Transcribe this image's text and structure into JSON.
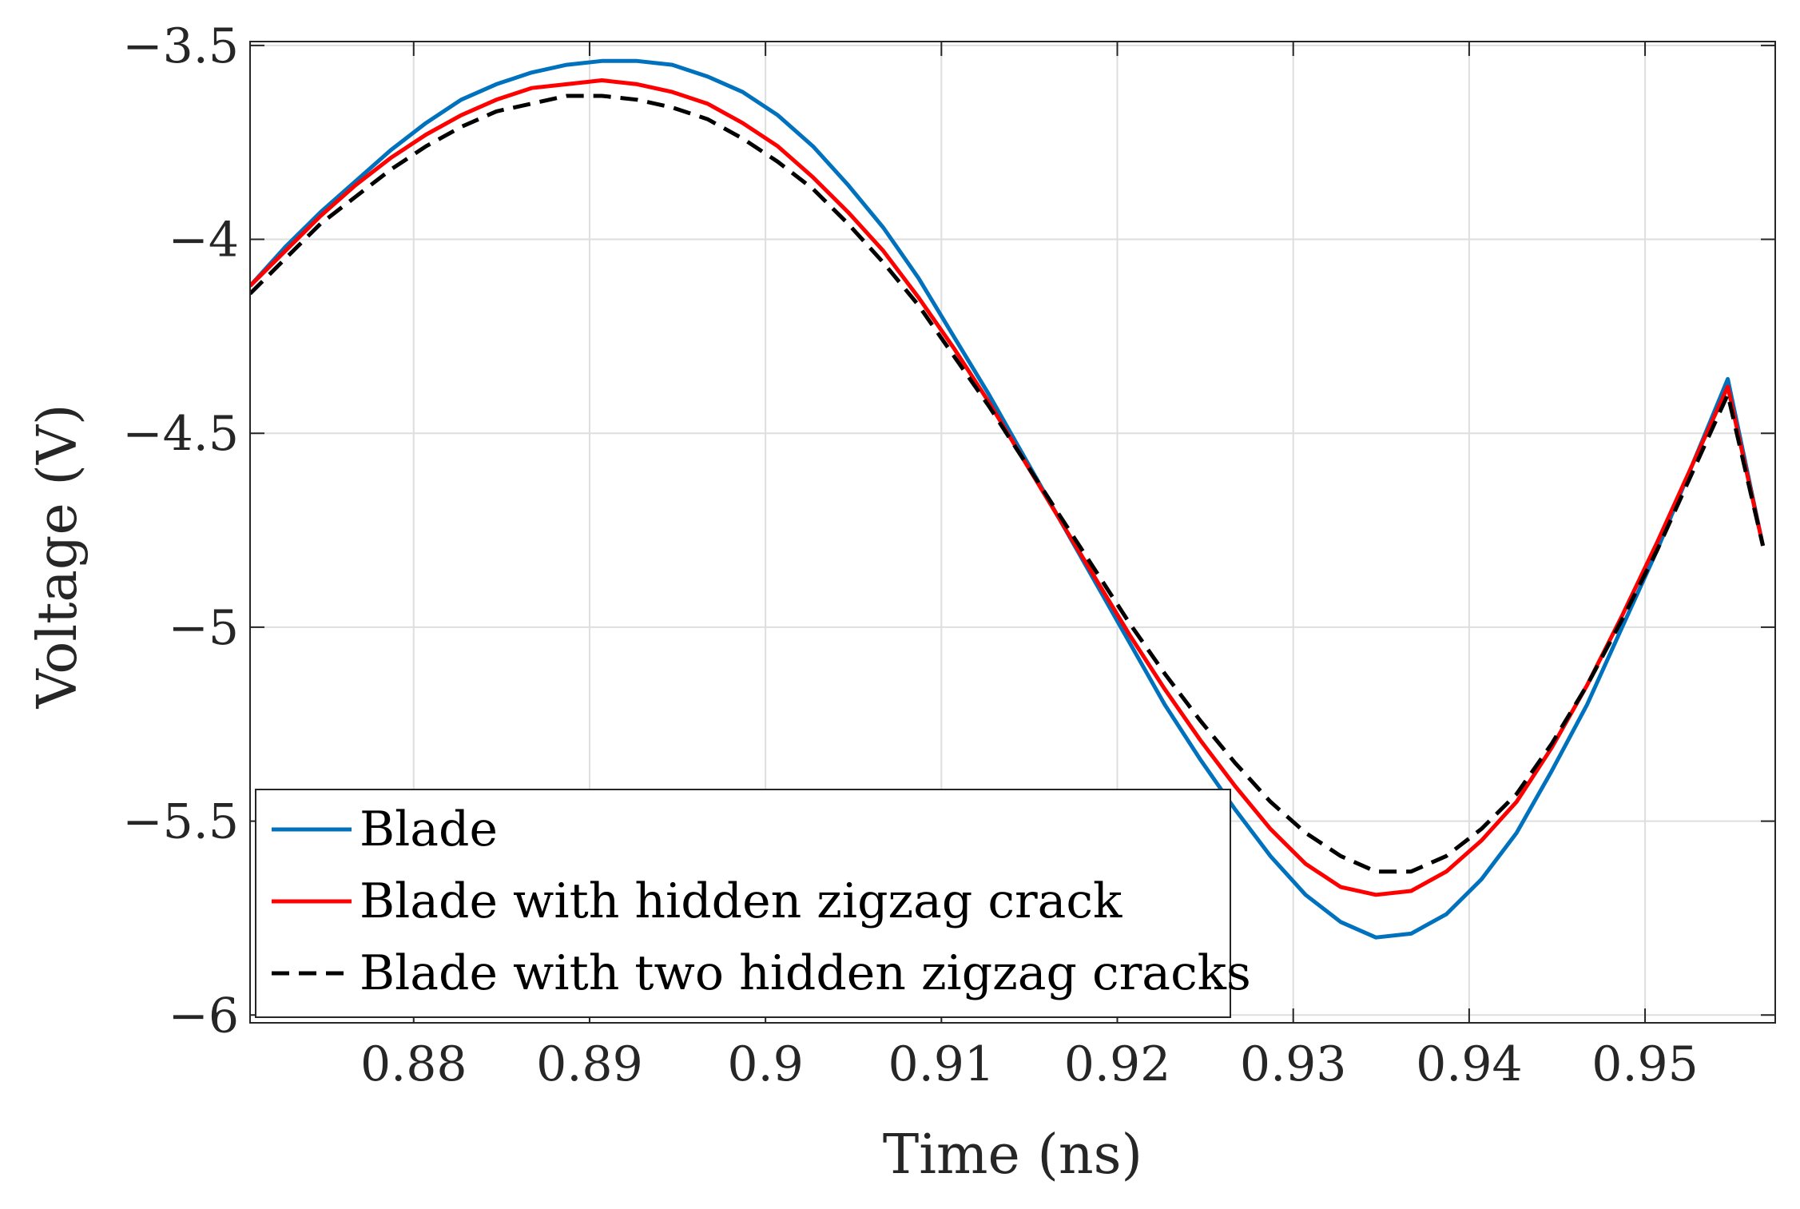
{
  "chart_data": {
    "type": "line",
    "title": "",
    "xlabel": "Time (ns)",
    "ylabel": "Voltage (V)",
    "xlim": [
      0.8707,
      0.9574
    ],
    "ylim": [
      -6.02,
      -3.49
    ],
    "grid": true,
    "legend_position": "bottom-left",
    "xticks": [
      0.88,
      0.89,
      0.9,
      0.91,
      0.92,
      0.93,
      0.94,
      0.95
    ],
    "xtick_labels": [
      "0.88",
      "0.89",
      "0.9",
      "0.91",
      "0.92",
      "0.93",
      "0.94",
      "0.95"
    ],
    "yticks": [
      -3.5,
      -4,
      -4.5,
      -5,
      -5.5,
      -6
    ],
    "ytick_labels": [
      "−3.5",
      "−4",
      "−4.5",
      "−5",
      "−5.5",
      "−6"
    ],
    "x": [
      0.8707,
      0.8727,
      0.8747,
      0.8767,
      0.8787,
      0.8807,
      0.8827,
      0.8847,
      0.8867,
      0.8887,
      0.8907,
      0.8927,
      0.8947,
      0.8967,
      0.8987,
      0.9007,
      0.9027,
      0.9047,
      0.9067,
      0.9087,
      0.9107,
      0.9127,
      0.9147,
      0.9167,
      0.9187,
      0.9207,
      0.9227,
      0.9247,
      0.9267,
      0.9287,
      0.9307,
      0.9327,
      0.9347,
      0.9367,
      0.9387,
      0.9407,
      0.9427,
      0.9447,
      0.9467,
      0.9487,
      0.9507,
      0.9527,
      0.9547,
      0.9567
    ],
    "series": [
      {
        "name": "Blade",
        "color": "#0072BD",
        "dash": "solid",
        "values": [
          -4.12,
          -4.02,
          -3.93,
          -3.85,
          -3.77,
          -3.7,
          -3.64,
          -3.6,
          -3.57,
          -3.55,
          -3.54,
          -3.54,
          -3.55,
          -3.58,
          -3.62,
          -3.68,
          -3.76,
          -3.86,
          -3.97,
          -4.1,
          -4.25,
          -4.4,
          -4.56,
          -4.72,
          -4.88,
          -5.04,
          -5.2,
          -5.34,
          -5.47,
          -5.59,
          -5.69,
          -5.76,
          -5.8,
          -5.79,
          -5.74,
          -5.65,
          -5.53,
          -5.37,
          -5.2,
          -5.0,
          -4.8,
          -4.58,
          -4.36,
          -4.79
        ]
      },
      {
        "name": "Blade with hidden zigzag crack",
        "color": "#FF0000",
        "dash": "solid",
        "values": [
          -4.12,
          -4.03,
          -3.94,
          -3.86,
          -3.79,
          -3.73,
          -3.68,
          -3.64,
          -3.61,
          -3.6,
          -3.59,
          -3.6,
          -3.62,
          -3.65,
          -3.7,
          -3.76,
          -3.84,
          -3.93,
          -4.03,
          -4.15,
          -4.28,
          -4.42,
          -4.57,
          -4.72,
          -4.87,
          -5.02,
          -5.16,
          -5.29,
          -5.41,
          -5.52,
          -5.61,
          -5.67,
          -5.69,
          -5.68,
          -5.63,
          -5.55,
          -5.45,
          -5.31,
          -5.15,
          -4.97,
          -4.78,
          -4.58,
          -4.38,
          -4.79
        ]
      },
      {
        "name": "Blade with two hidden zigzag cracks",
        "color": "#000000",
        "dash": "dashed",
        "values": [
          -4.14,
          -4.05,
          -3.96,
          -3.89,
          -3.82,
          -3.76,
          -3.71,
          -3.67,
          -3.65,
          -3.63,
          -3.63,
          -3.64,
          -3.66,
          -3.69,
          -3.74,
          -3.8,
          -3.87,
          -3.96,
          -4.06,
          -4.17,
          -4.3,
          -4.43,
          -4.57,
          -4.71,
          -4.85,
          -4.99,
          -5.12,
          -5.24,
          -5.35,
          -5.45,
          -5.53,
          -5.59,
          -5.63,
          -5.63,
          -5.59,
          -5.52,
          -5.43,
          -5.3,
          -5.15,
          -4.98,
          -4.8,
          -4.6,
          -4.4,
          -4.79
        ]
      }
    ],
    "legend": [
      "Blade",
      "Blade with hidden zigzag crack",
      "Blade with two hidden zigzag cracks"
    ]
  }
}
